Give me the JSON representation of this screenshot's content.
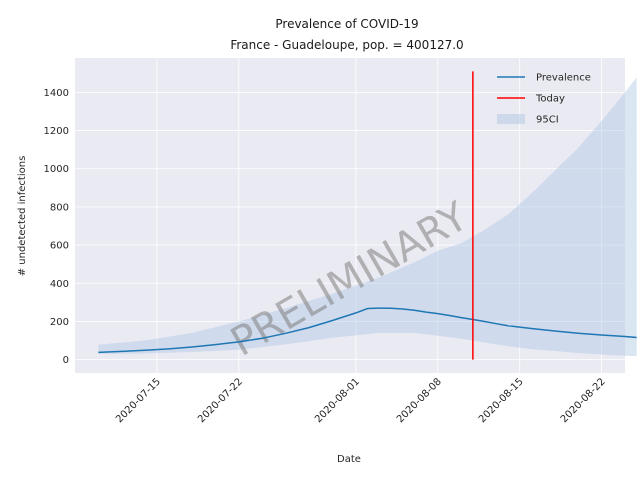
{
  "chart_data": {
    "type": "line",
    "title": "Prevalence of COVID-19",
    "subtitle": "France - Guadeloupe, pop. = 400127.0",
    "xlabel": "Date",
    "ylabel": "# undetected infections",
    "watermark": "PRELIMINARY",
    "xlim": [
      "2020-07-08",
      "2020-08-24"
    ],
    "ylim": [
      -70,
      1580
    ],
    "x_ticks": [
      "2020-07-15",
      "2020-07-22",
      "2020-08-01",
      "2020-08-08",
      "2020-08-15",
      "2020-08-22"
    ],
    "y_ticks": [
      0,
      200,
      400,
      600,
      800,
      1000,
      1200,
      1400
    ],
    "grid": true,
    "legend_position": "top-right",
    "legend": [
      "Prevalence",
      "Today",
      "95CI"
    ],
    "colors": {
      "prevalence": "#1f77b4",
      "today": "#ff0000",
      "ci": "#b0c8e4",
      "background": "#eaeaf2",
      "grid": "#ffffff"
    },
    "today": {
      "date": "2020-08-11",
      "y_range": [
        0,
        1510
      ]
    },
    "series": [
      {
        "name": "Prevalence",
        "points": [
          [
            "2020-07-10",
            38
          ],
          [
            "2020-07-12",
            43
          ],
          [
            "2020-07-14",
            49
          ],
          [
            "2020-07-16",
            56
          ],
          [
            "2020-07-18",
            66
          ],
          [
            "2020-07-20",
            79
          ],
          [
            "2020-07-22",
            93
          ],
          [
            "2020-07-24",
            112
          ],
          [
            "2020-07-26",
            138
          ],
          [
            "2020-07-28",
            168
          ],
          [
            "2020-07-30",
            205
          ],
          [
            "2020-08-01",
            245
          ],
          [
            "2020-08-02",
            268
          ],
          [
            "2020-08-03",
            270
          ],
          [
            "2020-08-04",
            269
          ],
          [
            "2020-08-05",
            265
          ],
          [
            "2020-08-06",
            259
          ],
          [
            "2020-08-07",
            249
          ],
          [
            "2020-08-08",
            241
          ],
          [
            "2020-08-09",
            231
          ],
          [
            "2020-08-10",
            220
          ],
          [
            "2020-08-11",
            210
          ],
          [
            "2020-08-12",
            200
          ],
          [
            "2020-08-13",
            188
          ],
          [
            "2020-08-14",
            178
          ],
          [
            "2020-08-16",
            163
          ],
          [
            "2020-08-18",
            150
          ],
          [
            "2020-08-20",
            138
          ],
          [
            "2020-08-22",
            129
          ],
          [
            "2020-08-24",
            121
          ],
          [
            "2020-08-25",
            116
          ]
        ]
      },
      {
        "name": "95CI",
        "upper": [
          [
            "2020-07-10",
            78
          ],
          [
            "2020-07-14",
            100
          ],
          [
            "2020-07-18",
            140
          ],
          [
            "2020-07-22",
            200
          ],
          [
            "2020-07-26",
            270
          ],
          [
            "2020-07-30",
            345
          ],
          [
            "2020-08-03",
            430
          ],
          [
            "2020-08-06",
            510
          ],
          [
            "2020-08-08",
            570
          ],
          [
            "2020-08-10",
            610
          ],
          [
            "2020-08-12",
            680
          ],
          [
            "2020-08-14",
            760
          ],
          [
            "2020-08-16",
            870
          ],
          [
            "2020-08-18",
            990
          ],
          [
            "2020-08-20",
            1110
          ],
          [
            "2020-08-22",
            1250
          ],
          [
            "2020-08-24",
            1400
          ],
          [
            "2020-08-25",
            1480
          ]
        ],
        "lower": [
          [
            "2020-07-10",
            30
          ],
          [
            "2020-07-14",
            32
          ],
          [
            "2020-07-18",
            40
          ],
          [
            "2020-07-22",
            52
          ],
          [
            "2020-07-26",
            80
          ],
          [
            "2020-07-30",
            115
          ],
          [
            "2020-08-03",
            140
          ],
          [
            "2020-08-06",
            140
          ],
          [
            "2020-08-08",
            125
          ],
          [
            "2020-08-10",
            110
          ],
          [
            "2020-08-12",
            90
          ],
          [
            "2020-08-14",
            70
          ],
          [
            "2020-08-16",
            55
          ],
          [
            "2020-08-18",
            45
          ],
          [
            "2020-08-20",
            35
          ],
          [
            "2020-08-22",
            27
          ],
          [
            "2020-08-24",
            20
          ],
          [
            "2020-08-25",
            18
          ]
        ]
      }
    ]
  }
}
